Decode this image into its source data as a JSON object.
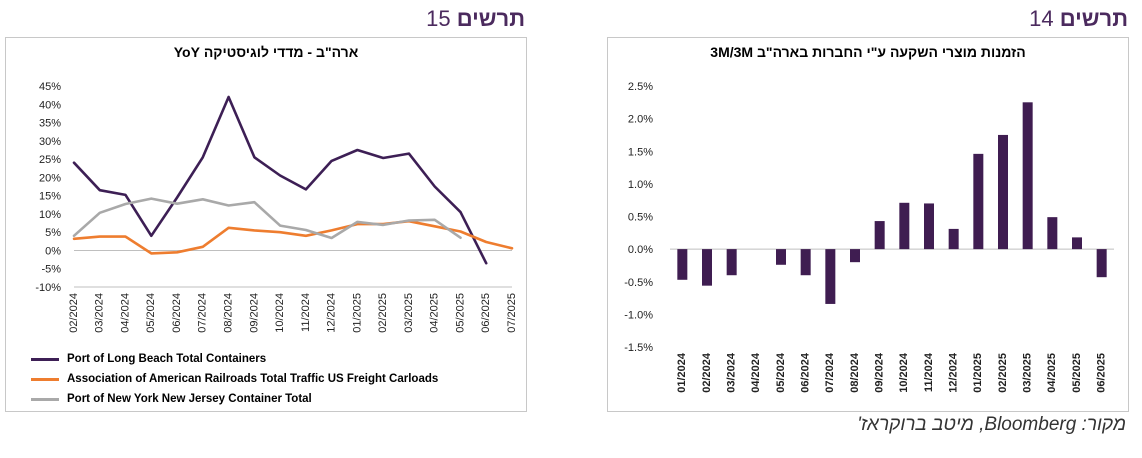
{
  "figure_15": {
    "label_word": "תרשים",
    "label_num": "15"
  },
  "figure_14": {
    "label_word": "תרשים",
    "label_num": "14"
  },
  "source": "מקור: Bloomberg, מיטב ברוקראז'",
  "colors": {
    "purple": "#3d1f55",
    "orange": "#ee7d2f",
    "gray": "#a9a9a9",
    "bar": "#3f1d51",
    "header": "#4b2a5e"
  },
  "chart_data": [
    {
      "type": "line",
      "title": "ארה\"ב - מדדי לוגיסטיקה YoY",
      "x": [
        "02/2024",
        "03/2024",
        "04/2024",
        "05/2024",
        "06/2024",
        "07/2024",
        "08/2024",
        "09/2024",
        "10/2024",
        "11/2024",
        "12/2024",
        "01/2025",
        "02/2025",
        "03/2025",
        "04/2025",
        "05/2025",
        "06/2025",
        "07/2025"
      ],
      "y_ticks": [
        "45%",
        "40%",
        "35%",
        "30%",
        "25%",
        "20%",
        "15%",
        "10%",
        "5%",
        "0%",
        "-5%",
        "-10%"
      ],
      "ylim": [
        -10,
        45
      ],
      "legend_position": "bottom-left",
      "series": [
        {
          "name": "Port of Long Beach Total Containers",
          "color": "#3d1f55",
          "values": [
            24,
            16.5,
            15.2,
            4,
            14.5,
            25.5,
            42,
            25.5,
            20.5,
            16.7,
            24.5,
            27.5,
            25.3,
            26.5,
            17.5,
            10.5,
            -3.5,
            null
          ]
        },
        {
          "name": "Association of American Railroads Total Traffic US Freight Carloads",
          "color": "#ee7d2f",
          "values": [
            3.2,
            3.8,
            3.8,
            -0.8,
            -0.5,
            1,
            6.2,
            5.5,
            5,
            4,
            5.5,
            7.2,
            7.2,
            8,
            6.6,
            5.2,
            2.3,
            0.6
          ]
        },
        {
          "name": "Port of New York New Jersey Container Total",
          "color": "#a9a9a9",
          "values": [
            4,
            10.3,
            12.7,
            14.2,
            12.8,
            14,
            12.3,
            13.2,
            6.8,
            5.6,
            3.4,
            7.8,
            7,
            8.2,
            8.4,
            3.5,
            null,
            null
          ]
        }
      ]
    },
    {
      "type": "bar",
      "title": "הזמנות מוצרי השקעה ע\"י החברות בארה\"ב 3M/3M",
      "categories": [
        "01/2024",
        "02/2024",
        "03/2024",
        "04/2024",
        "05/2024",
        "06/2024",
        "07/2024",
        "08/2024",
        "09/2024",
        "10/2024",
        "11/2024",
        "12/2024",
        "01/2025",
        "02/2025",
        "03/2025",
        "04/2025",
        "05/2025",
        "06/2025"
      ],
      "values": [
        -0.47,
        -0.56,
        -0.4,
        0,
        -0.24,
        -0.4,
        -0.84,
        -0.2,
        0.43,
        0.71,
        0.7,
        0.31,
        1.46,
        1.75,
        2.25,
        0.49,
        0.18,
        -0.43
      ],
      "y_ticks": [
        "2.5%",
        "2.0%",
        "1.5%",
        "1.0%",
        "0.5%",
        "0.0%",
        "-0.5%",
        "-1.0%",
        "-1.5%"
      ],
      "ylim": [
        -1.5,
        2.5
      ],
      "color": "#3f1d51"
    }
  ]
}
